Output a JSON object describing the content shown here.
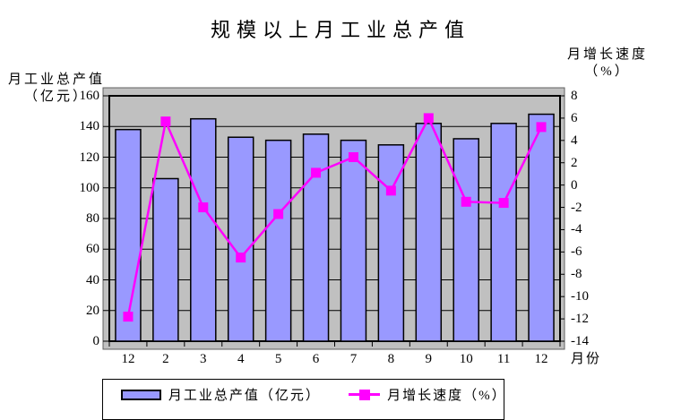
{
  "title": "规模以上月工业总产值",
  "left_axis": {
    "title_line1": "月工业总产值",
    "title_line2": "（亿元）",
    "tick_labels": [
      "160",
      "140",
      "120",
      "100",
      "80",
      "60",
      "40",
      "20",
      "0"
    ]
  },
  "right_axis": {
    "title_line1": "月增长速度",
    "title_line2": "（%）",
    "tick_labels": [
      "8",
      "6",
      "4",
      "2",
      "0",
      "-2",
      "-4",
      "-6",
      "-8",
      "-10",
      "-12",
      "-14"
    ]
  },
  "x_axis": {
    "name": "月份",
    "categories": [
      "12",
      "2",
      "3",
      "4",
      "5",
      "6",
      "7",
      "8",
      "9",
      "10",
      "11",
      "12"
    ]
  },
  "legend": {
    "items": [
      {
        "label": "月工业总产值（亿元）",
        "type": "bar"
      },
      {
        "label": "月增长速度（%）",
        "type": "line"
      }
    ]
  },
  "colors": {
    "bar_fill": "#9999FF",
    "bar_border": "#000000",
    "line": "#FF00FF",
    "marker": "#FF00FF",
    "plot_bg": "#C0C0C0",
    "gridline": "#000000",
    "outer_border": "#606060",
    "background": "#FFFFFF"
  },
  "chart_data": {
    "type": "bar+line combo",
    "title": "规模以上月工业总产值",
    "categories": [
      "12",
      "2",
      "3",
      "4",
      "5",
      "6",
      "7",
      "8",
      "9",
      "10",
      "11",
      "12"
    ],
    "xlabel": "月份",
    "grid": true,
    "legend_position": "bottom",
    "left_axis_label": "月工业总产值（亿元）",
    "right_axis_label": "月增长速度（%）",
    "left_ylim": [
      0,
      160
    ],
    "right_ylim": [
      -14,
      8
    ],
    "series": [
      {
        "name": "月工业总产值（亿元）",
        "type": "bar",
        "axis": "left",
        "values": [
          138,
          106,
          145,
          133,
          131,
          135,
          131,
          128,
          142,
          132,
          142,
          148
        ]
      },
      {
        "name": "月增长速度（%）",
        "type": "line",
        "axis": "right",
        "values": [
          -11.8,
          5.7,
          -2.0,
          -6.5,
          -2.6,
          1.1,
          2.5,
          -0.5,
          6.0,
          -1.5,
          -1.6,
          5.2
        ]
      }
    ]
  }
}
